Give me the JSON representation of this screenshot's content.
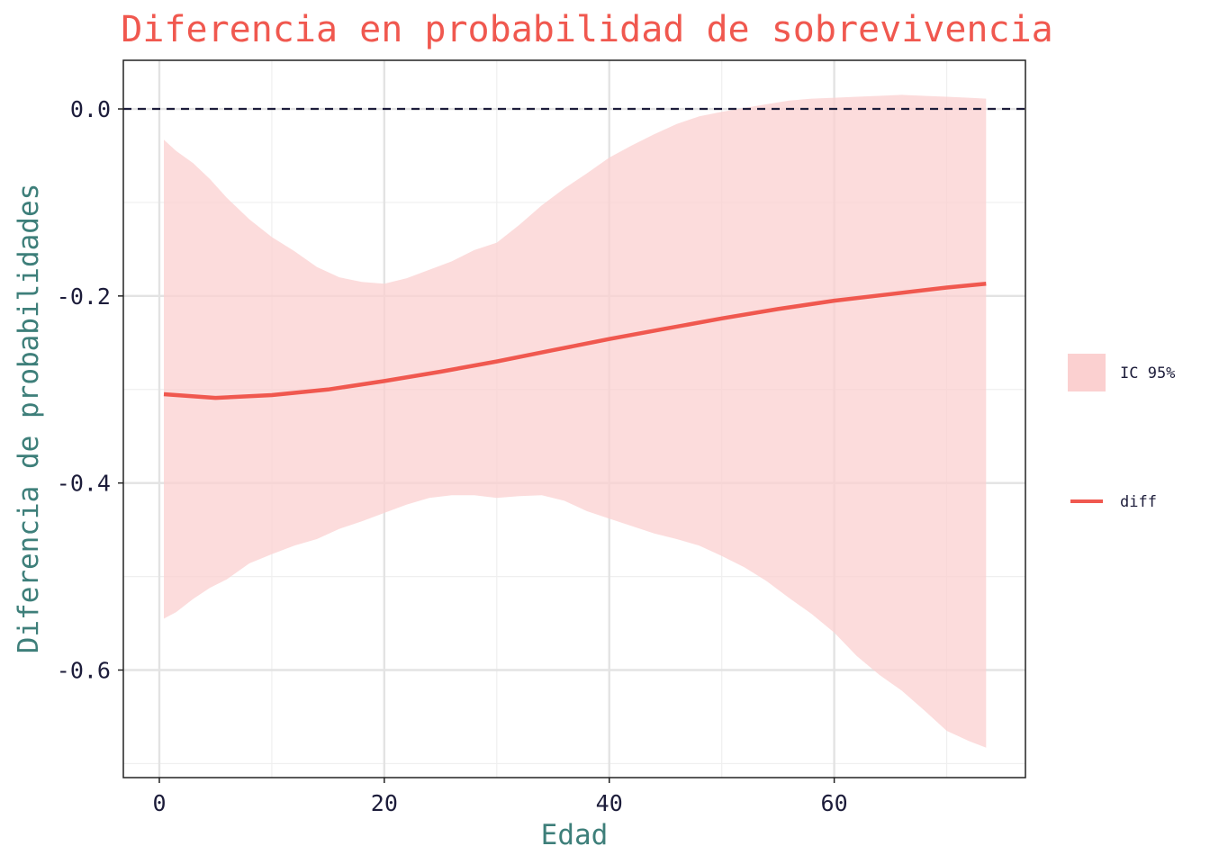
{
  "chart_data": {
    "type": "line",
    "title": "Diferencia en probabilidad de sobrevivencia",
    "xlabel": "Edad",
    "ylabel": "Diferencia de probabilidades",
    "xlim": [
      -3.2,
      77
    ],
    "ylim": [
      -0.715,
      0.052
    ],
    "x_ticks": [
      0,
      20,
      40,
      60
    ],
    "x_tick_labels": [
      "0",
      "20",
      "40",
      "60"
    ],
    "y_ticks": [
      0.0,
      -0.2,
      -0.4,
      -0.6
    ],
    "y_tick_labels": [
      "0.0",
      "-0.2",
      "-0.4",
      "-0.6"
    ],
    "x_minor_ticks": [
      10,
      30,
      50,
      70
    ],
    "y_minor_ticks": [
      -0.1,
      -0.3,
      -0.5,
      -0.7
    ],
    "grid": true,
    "reference_line": {
      "y": 0.0,
      "style": "dashed",
      "color": "#1c1c3a"
    },
    "legend_placement": "right",
    "series": [
      {
        "name": "IC 95%",
        "kind": "ribbon",
        "color": "#fbd0d0",
        "x": [
          0.4,
          1.5,
          3,
          4.5,
          6,
          8,
          10,
          12,
          14,
          16,
          18,
          20,
          22,
          24,
          26,
          28,
          30,
          32,
          34,
          36,
          38,
          40,
          42,
          44,
          46,
          48,
          50,
          52,
          54,
          56,
          58,
          60,
          62,
          64,
          66,
          68,
          70,
          72,
          73.5
        ],
        "upper": [
          -0.033,
          -0.045,
          -0.058,
          -0.075,
          -0.095,
          -0.118,
          -0.137,
          -0.152,
          -0.169,
          -0.18,
          -0.185,
          -0.187,
          -0.181,
          -0.172,
          -0.163,
          -0.151,
          -0.143,
          -0.124,
          -0.103,
          -0.085,
          -0.069,
          -0.052,
          -0.039,
          -0.027,
          -0.016,
          -0.008,
          -0.003,
          0.001,
          0.005,
          0.009,
          0.011,
          0.012,
          0.013,
          0.014,
          0.015,
          0.014,
          0.013,
          0.012,
          0.011
        ],
        "lower": [
          -0.545,
          -0.538,
          -0.524,
          -0.512,
          -0.503,
          -0.486,
          -0.476,
          -0.467,
          -0.46,
          -0.449,
          -0.441,
          -0.432,
          -0.423,
          -0.416,
          -0.413,
          -0.413,
          -0.416,
          -0.414,
          -0.413,
          -0.419,
          -0.43,
          -0.438,
          -0.446,
          -0.454,
          -0.46,
          -0.467,
          -0.478,
          -0.49,
          -0.505,
          -0.523,
          -0.54,
          -0.56,
          -0.585,
          -0.605,
          -0.622,
          -0.643,
          -0.665,
          -0.676,
          -0.683
        ]
      },
      {
        "name": "diff",
        "kind": "line",
        "color": "#f0584f",
        "x": [
          0.4,
          5,
          10,
          15,
          20,
          25,
          30,
          35,
          40,
          45,
          50,
          55,
          60,
          65,
          70,
          73.5
        ],
        "y": [
          -0.305,
          -0.309,
          -0.306,
          -0.3,
          -0.291,
          -0.281,
          -0.27,
          -0.258,
          -0.246,
          -0.235,
          -0.224,
          -0.214,
          -0.205,
          -0.198,
          -0.191,
          -0.187
        ]
      }
    ]
  },
  "legend": {
    "ribbon_label": "IC 95%",
    "line_label": "diff"
  },
  "colors": {
    "title": "#f0584f",
    "axis_title": "#3e7f7a",
    "tick_label": "#1c1c3a",
    "grid_major": "#e3e3e3",
    "grid_minor": "#efefef",
    "panel_border": "#222222",
    "ribbon": "#fbd0d0",
    "line": "#f0584f"
  }
}
